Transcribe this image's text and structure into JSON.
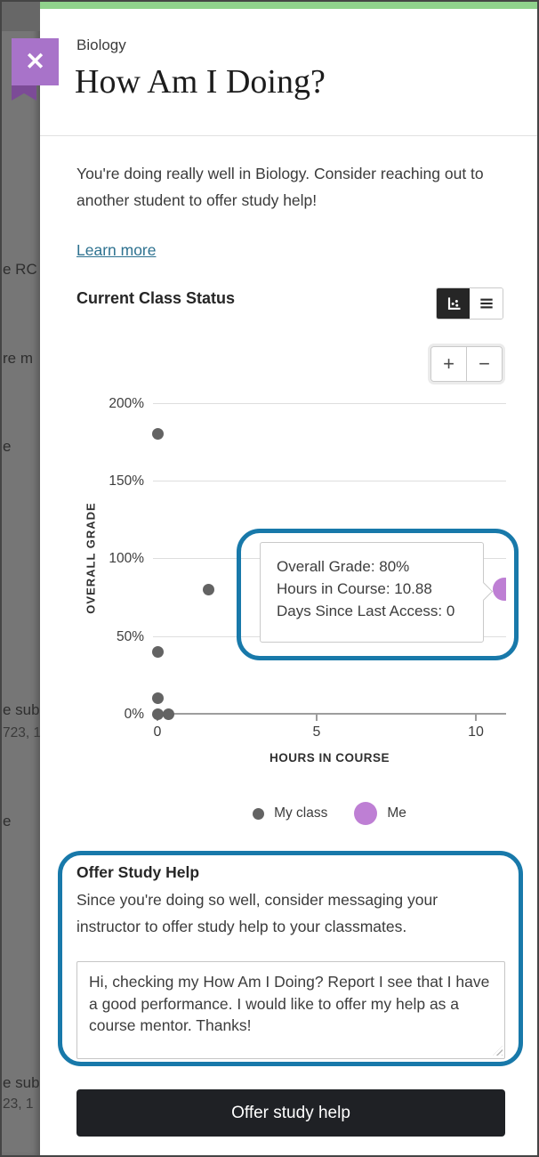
{
  "window": {
    "course_label": "Biology",
    "title": "How Am I Doing?"
  },
  "close_button": {
    "glyph": "✕"
  },
  "intro": {
    "text": "You're doing really well in Biology. Consider reaching out to another student to offer study help!",
    "link_label": "Learn more"
  },
  "status_section": {
    "heading": "Current Class Status"
  },
  "zoom_controls": {
    "zoom_in": "+",
    "zoom_out": "−"
  },
  "chart_data": {
    "type": "scatter",
    "title": "Current Class Status",
    "xlabel": "HOURS IN COURSE",
    "ylabel": "OVERALL GRADE",
    "x_ticks": [
      "0",
      "5",
      "10"
    ],
    "y_ticks": [
      "200%",
      "150%",
      "100%",
      "50%",
      "0%"
    ],
    "xlim": [
      0,
      11.2
    ],
    "ylim_percent": [
      0,
      200
    ],
    "grid": true,
    "legend_position": "bottom",
    "series": [
      {
        "name": "My class",
        "color": "#636363",
        "points": [
          {
            "hours": 0,
            "grade_pct": 180
          },
          {
            "hours": 1.6,
            "grade_pct": 80
          },
          {
            "hours": 0,
            "grade_pct": 40
          },
          {
            "hours": 0,
            "grade_pct": 10
          },
          {
            "hours": 0,
            "grade_pct": 0
          },
          {
            "hours": 0.35,
            "grade_pct": 0
          }
        ]
      },
      {
        "name": "Me",
        "color": "#be7fd4",
        "points": [
          {
            "hours": 10.88,
            "grade_pct": 80
          }
        ]
      }
    ],
    "tooltip": {
      "lines": [
        "Overall Grade: 80%",
        "Hours in Course: 10.88",
        "Days Since Last Access: 0"
      ]
    }
  },
  "legend": {
    "class_label": "My class",
    "me_label": "Me"
  },
  "offer": {
    "heading": "Offer Study Help",
    "body": "Since you're doing so well, consider messaging your instructor to offer study help to your classmates.",
    "message": "Hi, checking my How Am I Doing? Report I see that I have a good performance. I would like to offer my help as a course mentor. Thanks!",
    "button_label": "Offer study help"
  },
  "background_fragments": [
    "e RC a",
    "re m",
    "e",
    "e subr",
    "723, 1",
    "e",
    "e subr",
    "23, 1"
  ],
  "colors": {
    "accent_blue": "#1879aa",
    "purple_me": "#be7fd4",
    "purple_close": "#a873c9",
    "ribbon_dark_purple": "#7c4b97",
    "green_bar": "#90d28c",
    "class_gray": "#636363",
    "link_teal": "#2e7290",
    "button_dark": "#1f2125"
  }
}
